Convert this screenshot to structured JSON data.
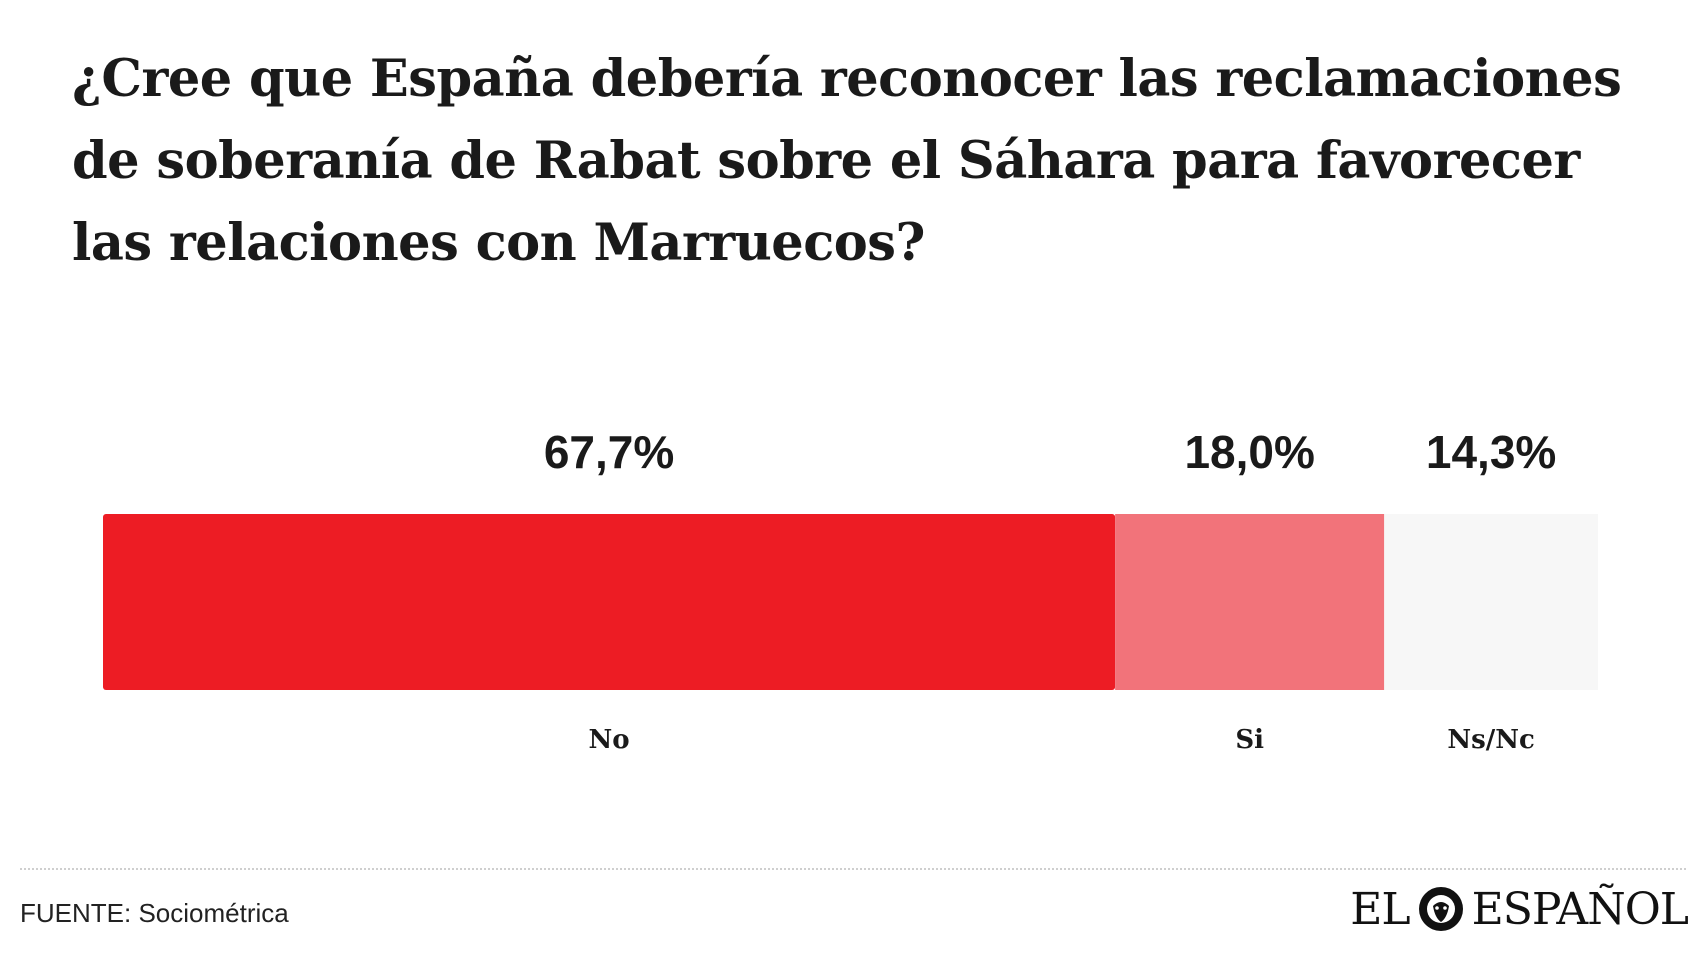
{
  "title": "¿Cree que España debería reconocer las reclamaciones de soberanía de Rabat sobre el Sáhara para favorecer las relaciones con Marruecos?",
  "source": "FUENTE: Sociométrica",
  "logo": {
    "left": "EL",
    "right": "ESPAÑOL",
    "icon": "lion-head-icon"
  },
  "chart_data": {
    "type": "bar",
    "orientation": "horizontal-stacked",
    "title": "¿Cree que España debería reconocer las reclamaciones de soberanía de Rabat sobre el Sáhara para favorecer las relaciones con Marruecos?",
    "categories": [
      "No",
      "Si",
      "Ns/Nc"
    ],
    "values": [
      67.7,
      18.0,
      14.3
    ],
    "value_labels": [
      "67,7%",
      "18,0%",
      "14,3%"
    ],
    "colors": [
      "#ed1c24",
      "#f2737a",
      "#f7f7f7"
    ],
    "xlabel": "",
    "ylabel": "",
    "grid": false,
    "legend": "none"
  }
}
